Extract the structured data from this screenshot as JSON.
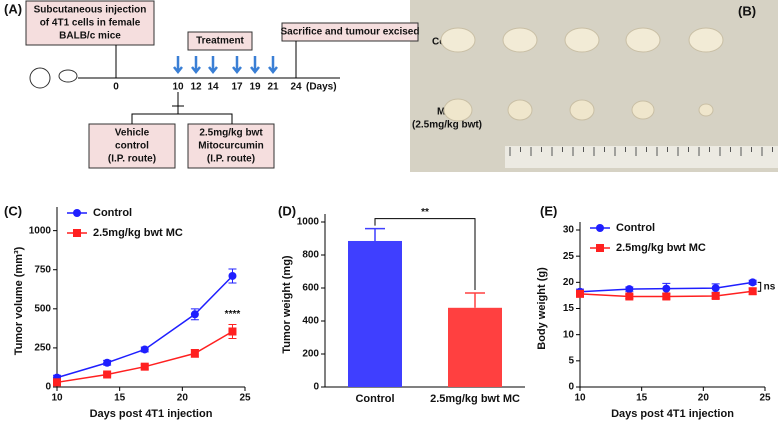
{
  "schematic": {
    "panel": "(A)",
    "injection": [
      "Subcutaneous injection",
      "of 4T1 cells in female",
      "BALB/c mice"
    ],
    "treatment": "Treatment",
    "sacrifice": "Sacrifice and tumour excised",
    "days": [
      "0",
      "10",
      "12",
      "14",
      "17",
      "19",
      "21",
      "24"
    ],
    "days_unit": "(Days)",
    "vehicle": [
      "Vehicle",
      "control",
      "(I.P. route)"
    ],
    "drug": [
      "2.5mg/kg bwt",
      "Mitocurcumin",
      "(I.P. route)"
    ]
  },
  "photo": {
    "panel": "(B)",
    "control": "Control",
    "mc": [
      "MC",
      "(2.5mg/kg bwt)"
    ]
  },
  "chart_data": [
    {
      "type": "line",
      "panel": "(C)",
      "xlabel": "Days post 4T1 injection",
      "ylabel": "Tumor volume (mm³)",
      "x": [
        10,
        14,
        17,
        21,
        24
      ],
      "xlim": [
        10,
        25
      ],
      "xticks": [
        10,
        15,
        20,
        25
      ],
      "ylim": [
        0,
        1100
      ],
      "yticks": [
        0,
        250,
        500,
        750,
        1000
      ],
      "annotation": "****",
      "series": [
        {
          "name": "Control",
          "color": "#1f1fff",
          "marker": "circle",
          "values": [
            60,
            155,
            240,
            465,
            710
          ],
          "errors": [
            15,
            15,
            15,
            35,
            45
          ]
        },
        {
          "name": "2.5mg/kg bwt MC",
          "color": "#ff2020",
          "marker": "square",
          "values": [
            30,
            80,
            130,
            215,
            355
          ],
          "errors": [
            10,
            10,
            15,
            25,
            45
          ]
        }
      ]
    },
    {
      "type": "bar",
      "panel": "(D)",
      "ylabel": "Tumor weight (mg)",
      "categories": [
        "Control",
        "2.5mg/kg bwt MC"
      ],
      "values": [
        885,
        480
      ],
      "errors": [
        75,
        90
      ],
      "colors": [
        "#3f3fff",
        "#ff4040"
      ],
      "ylim": [
        0,
        1000
      ],
      "yticks": [
        0,
        200,
        400,
        600,
        800,
        1000
      ],
      "annotation": "**"
    },
    {
      "type": "line",
      "panel": "(E)",
      "xlabel": "Days post 4T1 injection",
      "ylabel": "Body weight (g)",
      "x": [
        10,
        14,
        17,
        21,
        24
      ],
      "xlim": [
        10,
        25
      ],
      "xticks": [
        10,
        15,
        20,
        25
      ],
      "ylim": [
        0,
        30
      ],
      "yticks": [
        0,
        5,
        10,
        15,
        20,
        25,
        30
      ],
      "annotation": "ns",
      "series": [
        {
          "name": "Control",
          "color": "#1f1fff",
          "marker": "circle",
          "values": [
            18.2,
            18.7,
            18.8,
            18.9,
            20
          ],
          "errors": [
            0.5,
            0.4,
            1,
            0.8,
            0.4
          ]
        },
        {
          "name": "2.5mg/kg bwt MC",
          "color": "#ff2020",
          "marker": "square",
          "values": [
            17.8,
            17.3,
            17.3,
            17.4,
            18.3
          ],
          "errors": [
            0.4,
            0.4,
            0.5,
            0.5,
            0.6
          ]
        }
      ]
    }
  ]
}
